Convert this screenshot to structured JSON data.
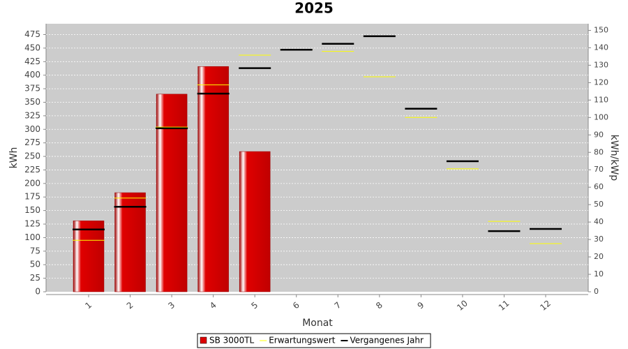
{
  "chart_data": {
    "type": "bar",
    "title": "2025",
    "x_label": "Monat",
    "y_label": "kWh",
    "y2_label": "kWh/kWp",
    "categories": [
      "1",
      "2",
      "3",
      "4",
      "5",
      "6",
      "7",
      "8",
      "9",
      "10",
      "11",
      "12"
    ],
    "series": [
      {
        "name": "SB 3000TL",
        "type": "bar",
        "color": "#dd0000",
        "values": [
          131,
          183,
          365,
          416,
          259,
          null,
          null,
          null,
          null,
          null,
          null,
          null
        ]
      },
      {
        "name": "Erwartungswert",
        "type": "marker",
        "color": "#ffff00",
        "values": [
          95,
          173,
          304,
          382,
          437,
          447,
          444,
          397,
          322,
          227,
          130,
          89
        ]
      },
      {
        "name": "Vergangenes Jahr",
        "type": "marker",
        "color": "#000000",
        "values": [
          115,
          157,
          302,
          366,
          413,
          447,
          458,
          472,
          338,
          241,
          112,
          116
        ]
      }
    ],
    "ylim": [
      0,
      495
    ],
    "yticks": [
      0,
      25,
      50,
      75,
      100,
      125,
      150,
      175,
      200,
      225,
      250,
      275,
      300,
      325,
      350,
      375,
      400,
      425,
      450,
      475
    ],
    "y2lim": [
      0,
      153.8
    ],
    "y2ticks": [
      0,
      10,
      20,
      30,
      40,
      50,
      60,
      70,
      80,
      90,
      100,
      110,
      120,
      130,
      140,
      150
    ],
    "grid": true
  }
}
